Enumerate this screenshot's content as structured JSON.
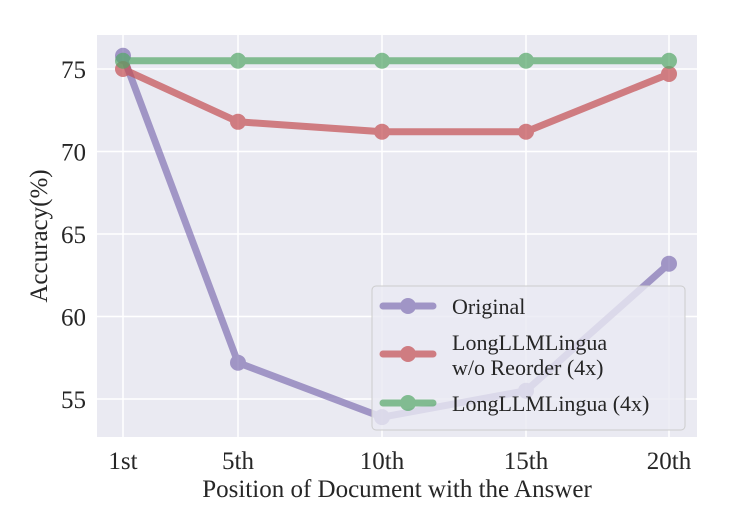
{
  "chart_data": {
    "type": "line",
    "title": "",
    "xlabel": "Position of Document with the Answer",
    "ylabel": "Accuracy(%)",
    "categories": [
      "1st",
      "5th",
      "10th",
      "15th",
      "20th"
    ],
    "x_positions": [
      1,
      5,
      10,
      15,
      20
    ],
    "yticks": [
      55,
      60,
      65,
      70,
      75
    ],
    "ylim": [
      52.9,
      76.9
    ],
    "xlim": [
      -0.9,
      21.0
    ],
    "grid": true,
    "legend_position": "lower right",
    "series": [
      {
        "name": "Original",
        "color": "#8172b3",
        "values": [
          75.8,
          57.2,
          53.9,
          55.5,
          63.2
        ]
      },
      {
        "name": "LongLLMLingua\nw/o Reorder (4x)",
        "legend_lines": [
          "LongLLMLingua",
          "w/o Reorder (4x)"
        ],
        "color": "#c44e52",
        "values": [
          75.0,
          71.8,
          71.2,
          71.2,
          74.7
        ]
      },
      {
        "name": "LongLLMLingua (4x)",
        "color": "#55a868",
        "values": [
          75.5,
          75.5,
          75.5,
          75.5,
          75.5
        ]
      }
    ]
  },
  "style": {
    "plot_bg": "#eaeaf2",
    "grid_color": "#ffffff"
  }
}
